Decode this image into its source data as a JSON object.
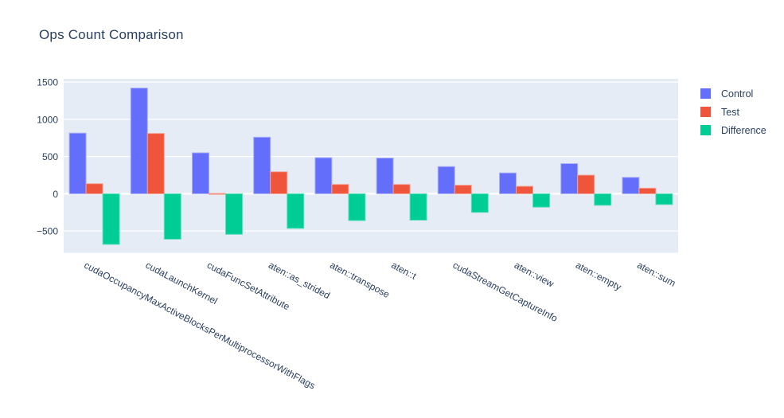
{
  "title": "Ops Count Comparison",
  "chart_data": {
    "type": "bar",
    "title": "Ops Count Comparison",
    "categories": [
      "cudaOccupancyMaxActiveBlocksPerMultiprocessorWithFlags",
      "cudaLaunchKernel",
      "cudaFuncSetAttribute",
      "aten::as_strided",
      "aten::transpose",
      "aten::t",
      "cudaStreamGetCaptureInfo",
      "aten::view",
      "aten::empty",
      "aten::sum"
    ],
    "series": [
      {
        "name": "Control",
        "color": "#636EFA",
        "edge_color": "#A9B0FB",
        "values": [
          815,
          1420,
          550,
          760,
          485,
          480,
          365,
          280,
          405,
          220
        ]
      },
      {
        "name": "Test",
        "color": "#EF553B",
        "edge_color": "#F5A092",
        "values": [
          135,
          810,
          5,
          295,
          125,
          125,
          115,
          100,
          250,
          75
        ]
      },
      {
        "name": "Difference",
        "color": "#00CC96",
        "edge_color": "#5CDFBE",
        "values": [
          -680,
          -610,
          -545,
          -465,
          -360,
          -355,
          -250,
          -180,
          -155,
          -145
        ]
      }
    ],
    "xlabel": "",
    "ylabel": "",
    "yticks": [
      -500,
      0,
      500,
      1000,
      1500
    ],
    "ylim": [
      -793,
      1544
    ],
    "grid": true,
    "legend_position": "right",
    "plot_bg": "#E5ECF6",
    "grid_color": "#FFFFFF",
    "font_color": "#2A3F5F",
    "tick_font_size": 12,
    "tick_angle": 28
  }
}
